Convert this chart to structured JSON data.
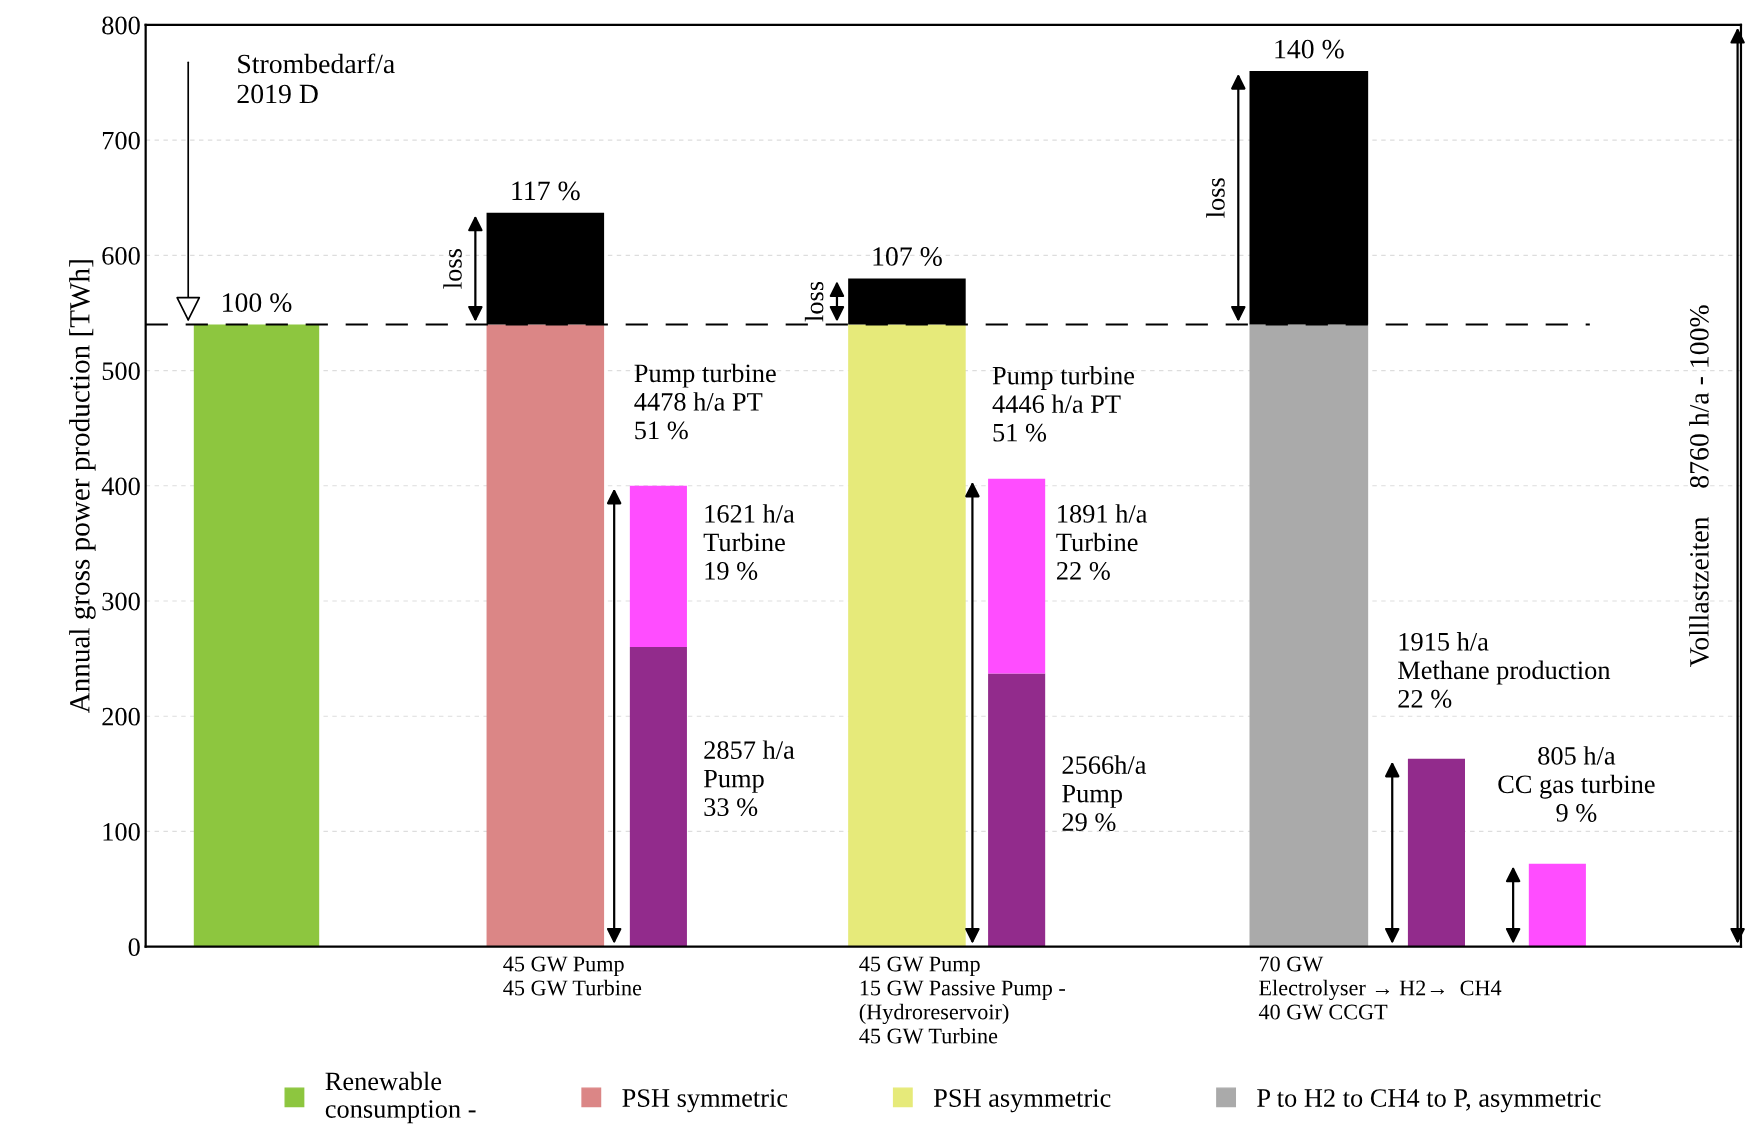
{
  "chart_data": {
    "type": "bar",
    "stacked": true,
    "ylabel": "Annual gross power production [TWh]",
    "categories": [
      null,
      null,
      null,
      null,
      null,
      null,
      null,
      null
    ],
    "series": [
      {
        "name": "Renewable\nconsumption -",
        "color": "#8dc63f",
        "values": [
          540,
          null,
          null,
          null,
          null,
          null,
          null,
          null
        ],
        "colors": [
          "#8dc63f",
          null,
          null,
          null,
          null,
          null,
          null,
          null
        ]
      },
      {
        "name": "PSH symmetric",
        "color": "#db8686",
        "values": [
          null,
          540,
          260,
          null,
          null,
          null,
          null,
          null
        ],
        "colors": [
          null,
          "#db8686",
          "#922b8c",
          null,
          null,
          null,
          null,
          null
        ]
      },
      {
        "name": "PSH asymmetric",
        "color": "#e6ea7a",
        "values": [
          null,
          null,
          null,
          540,
          237,
          null,
          null,
          null
        ],
        "colors": [
          null,
          null,
          null,
          "#e6ea7a",
          "#922b8c",
          null,
          null,
          null
        ]
      },
      {
        "name": "P to H2 to CH4 to P, asymmetric",
        "color": "#aaaaaa",
        "values": [
          null,
          null,
          null,
          null,
          null,
          540,
          163,
          72
        ],
        "colors": [
          null,
          null,
          null,
          null,
          null,
          "#aaaaaa",
          "#922b8c",
          "#ff4dff"
        ]
      },
      {
        "values": [
          null,
          97,
          140,
          40,
          169,
          220,
          null,
          null
        ],
        "colors": [
          null,
          "#000000",
          "#ff4dff",
          "#000000",
          "#ff4dff",
          "#000000",
          null,
          null
        ]
      }
    ],
    "ylim": [
      0,
      800
    ],
    "yticks": [
      0,
      100,
      200,
      300,
      400,
      500,
      600,
      700,
      800
    ],
    "grid": "y",
    "legend": "bottom",
    "ref_lines": [
      {
        "axis": "y",
        "value": 540,
        "color": "#000000",
        "line_style": "dashed"
      }
    ],
    "annotations": [
      "Strombedarf/a\n2019 D",
      "loss",
      "loss",
      "loss",
      "Pump turbine\n4478 h/a PT\n51 %",
      "1621 h/a\nTurbine\n19 %",
      "2857 h/a\nPump\n33 %",
      "Pump turbine\n4446 h/a PT\n51 %",
      "1891 h/a\nTurbine\n22 %",
      "2566h/a\nPump\n29 %",
      "1915 h/a\nMethane production\n22 %",
      "805 h/a\nCC gas turbine\n9 %",
      "45 GW Pump\n45 GW Turbine",
      "45 GW Pump\n15 GW Passive Pump -\n(Hydroreservoir)\n45 GW Turbine",
      "70 GW\nElectrolyser → H2→  CH4\n40 GW CCGT",
      "Volllastzeiten    8760 h/a - 100%",
      "100 %",
      "117 %",
      "107 %",
      "140 %"
    ]
  }
}
